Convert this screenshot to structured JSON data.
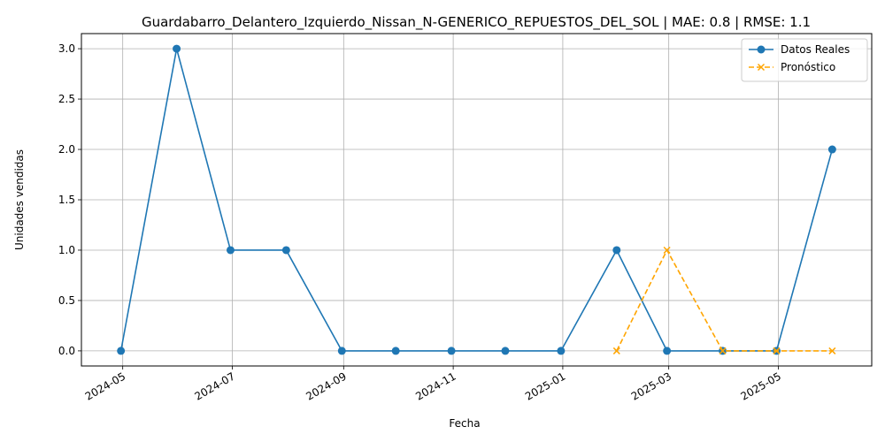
{
  "chart_data": {
    "type": "line",
    "title": "Guardabarro_Delantero_Izquierdo_Nissan_N-GENERICO_REPUESTOS_DEL_SOL | MAE: 0.8 | RMSE: 1.1",
    "xlabel": "Fecha",
    "ylabel": "Unidades vendidas",
    "ylim": [
      -0.15,
      3.15
    ],
    "xlim": [
      "2024-04-08",
      "2025-06-22"
    ],
    "grid": true,
    "legend_position": "top-right",
    "x_ticks": [
      "2024-05",
      "2024-07",
      "2024-09",
      "2024-11",
      "2025-01",
      "2025-03",
      "2025-05"
    ],
    "x_tick_dates": [
      "2024-05-01",
      "2024-07-01",
      "2024-09-01",
      "2024-11-01",
      "2025-01-01",
      "2025-03-01",
      "2025-05-01"
    ],
    "y_ticks": [
      "0.0",
      "0.5",
      "1.0",
      "1.5",
      "2.0",
      "2.5",
      "3.0"
    ],
    "y_tick_values": [
      0,
      0.5,
      1,
      1.5,
      2,
      2.5,
      3
    ],
    "series": [
      {
        "name": "Datos Reales",
        "color": "#1f77b4",
        "style": "solid",
        "marker": "circle",
        "x": [
          "2024-04-30",
          "2024-05-31",
          "2024-06-30",
          "2024-07-31",
          "2024-08-31",
          "2024-09-30",
          "2024-10-31",
          "2024-11-30",
          "2024-12-31",
          "2025-01-31",
          "2025-02-28",
          "2025-03-31",
          "2025-04-30",
          "2025-05-31"
        ],
        "values": [
          0,
          3,
          1,
          1,
          0,
          0,
          0,
          0,
          0,
          1,
          0,
          0,
          0,
          2
        ]
      },
      {
        "name": "Pronóstico",
        "color": "#ffa500",
        "style": "dashed",
        "marker": "x",
        "x": [
          "2025-01-31",
          "2025-02-28",
          "2025-03-31",
          "2025-04-30",
          "2025-05-31"
        ],
        "values": [
          0,
          1,
          0,
          0,
          0
        ]
      }
    ]
  }
}
